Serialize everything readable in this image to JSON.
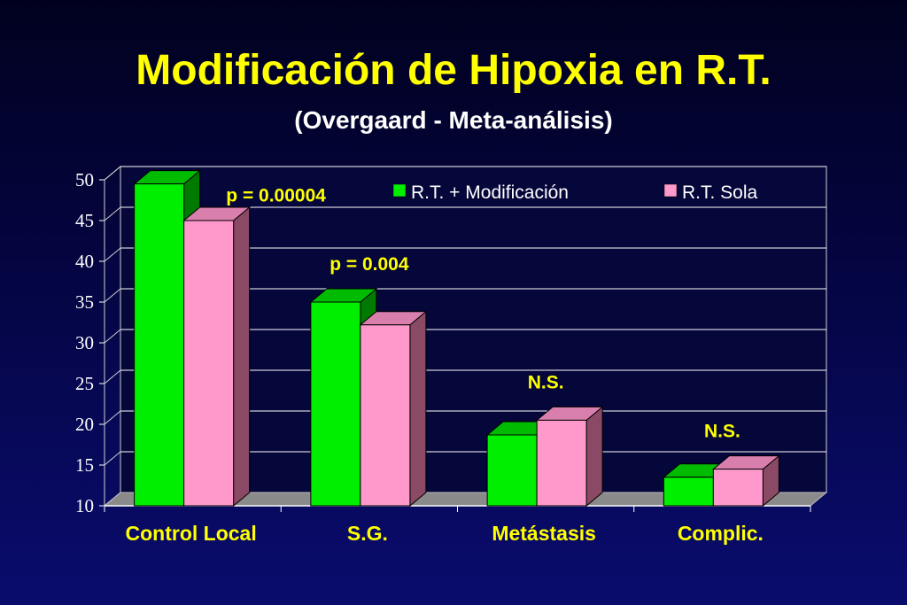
{
  "title": "Modificación de Hipoxia en R.T.",
  "subtitle": "(Overgaard - Meta-análisis)",
  "colors": {
    "series1_front": "#00ee00",
    "series1_top": "#00bb00",
    "series1_side": "#007a00",
    "series2_front": "#ff99cc",
    "series2_top": "#d97fae",
    "series2_side": "#8a4a66",
    "floor": "#8a8a8a",
    "plot_bg": "#05063a",
    "grid": "#ffffff",
    "category_text": "#ffff00",
    "annotation_text": "#ffff00",
    "legend_text": "#ffffff"
  },
  "chart_data": {
    "type": "bar",
    "categories": [
      "Control Local",
      "S.G.",
      "Metástasis",
      "Complic."
    ],
    "series": [
      {
        "name": "R.T. + Modificación",
        "values": [
          49.5,
          35,
          18.7,
          13.5
        ]
      },
      {
        "name": "R.T. Sola",
        "values": [
          45,
          32.2,
          20.5,
          14.5
        ]
      }
    ],
    "ylim": [
      10,
      50
    ],
    "yticks": [
      "10",
      "15",
      "20",
      "25",
      "30",
      "35",
      "40",
      "45",
      "50"
    ],
    "grid": true,
    "legend_position": "top-right",
    "annotations": [
      {
        "category_index": 0,
        "text": "p = 0.00004"
      },
      {
        "category_index": 1,
        "text": "p = 0.004"
      },
      {
        "category_index": 2,
        "text": "N.S."
      },
      {
        "category_index": 3,
        "text": "N.S."
      }
    ]
  }
}
